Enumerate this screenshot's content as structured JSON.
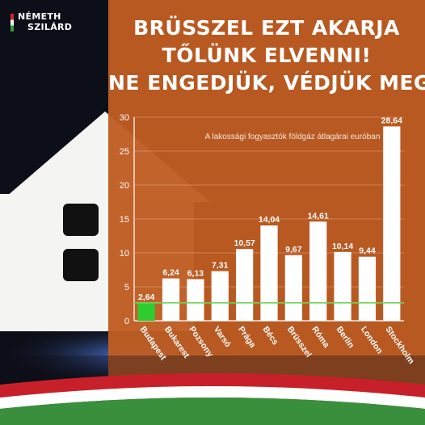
{
  "brand": {
    "line1": "NÉMETH",
    "line2": "SZILÁRD"
  },
  "headline": {
    "line1": "BRÜSSZEL EZT AKARJA",
    "line2": "TŐLÜNK ELVENNI!",
    "line3": "NE ENGEDJÜK, VÉDJÜK MEG!"
  },
  "colors": {
    "accent_orange": "#c05d22",
    "bar": "#ffffff",
    "budapest_bar": "#2ecc2e",
    "reference_line": "#6fd35a"
  },
  "chart_data": {
    "type": "bar",
    "title": "A lakossági fogyasztók földgáz átlagárai euróban",
    "categories": [
      "Budapest",
      "Bukarest",
      "Pozsony",
      "Varsó",
      "Prága",
      "Bécs",
      "Brüsszel",
      "Róma",
      "Berlin",
      "London",
      "Stockholm"
    ],
    "values": [
      2.64,
      6.24,
      6.13,
      7.31,
      10.57,
      14.04,
      9.67,
      14.61,
      10.14,
      9.44,
      28.64
    ],
    "value_labels": [
      "2,64",
      "6,24",
      "6,13",
      "7,31",
      "10,57",
      "14,04",
      "9,67",
      "14,61",
      "10,14",
      "9,44",
      "28,64"
    ],
    "ylim": [
      0,
      30
    ],
    "yticks": [
      0,
      5,
      10,
      15,
      20,
      25,
      30
    ],
    "grid": true,
    "reference_line": 2.64,
    "highlight_category": "Budapest"
  }
}
